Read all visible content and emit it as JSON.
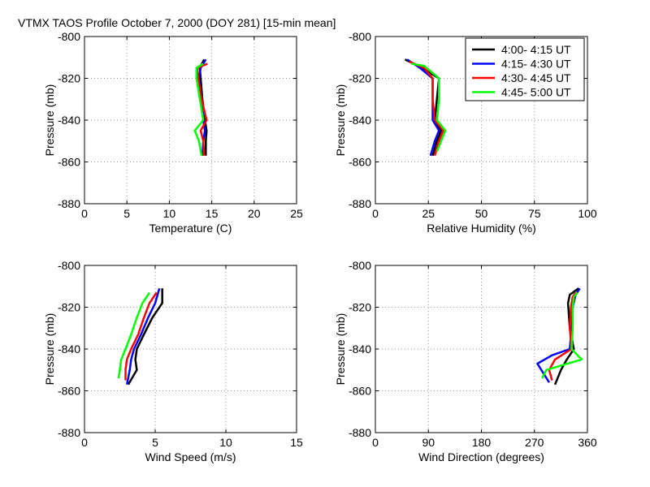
{
  "title": "VTMX TAOS Profile   October 7, 2000 (DOY 281) [15-min mean]",
  "legend": [
    {
      "name": "4:00- 4:15 UT",
      "color": "#000000"
    },
    {
      "name": "4:15- 4:30 UT",
      "color": "#0000ff"
    },
    {
      "name": "4:30- 4:45 UT",
      "color": "#ff0000"
    },
    {
      "name": "4:45- 5:00 UT",
      "color": "#00ff00"
    }
  ],
  "chart_data": [
    {
      "type": "line",
      "xlabel": "Temperature (C)",
      "ylabel": "Pressure (mb)",
      "xlim": [
        0,
        25
      ],
      "ylim": [
        -880,
        -800
      ],
      "xticks": [
        0,
        5,
        10,
        15,
        20,
        25
      ],
      "xtick_labels": [
        "0",
        "5",
        "10",
        "15",
        "20",
        "25"
      ],
      "yticks": [
        -800,
        -820,
        -840,
        -860,
        -880
      ],
      "ytick_labels": [
        "-800",
        "-820",
        "-840",
        "-860",
        "-880"
      ],
      "legend": false,
      "series": [
        {
          "name": "4:00- 4:15 UT",
          "x": [
            14.1,
            13.6,
            13.7,
            13.9,
            14.2,
            14.4,
            14.3,
            14.3
          ],
          "y": [
            -811,
            -815,
            -820,
            -830,
            -840,
            -845,
            -850,
            -857
          ]
        },
        {
          "name": "4:15- 4:30 UT",
          "x": [
            14.3,
            13.7,
            13.5,
            13.8,
            14.0,
            14.2,
            14.0,
            13.9
          ],
          "y": [
            -811,
            -815,
            -820,
            -830,
            -840,
            -845,
            -850,
            -857
          ]
        },
        {
          "name": "4:30- 4:45 UT",
          "x": [
            14.5,
            13.3,
            13.4,
            13.8,
            14.4,
            13.7,
            14.0,
            14.1
          ],
          "y": [
            -813,
            -815,
            -820,
            -830,
            -840,
            -845,
            -850,
            -857
          ]
        },
        {
          "name": "4:45- 5:00 UT",
          "x": [
            14.0,
            13.2,
            13.2,
            13.6,
            14.0,
            13.0,
            13.5,
            13.8
          ],
          "y": [
            -813,
            -815,
            -820,
            -830,
            -840,
            -845,
            -850,
            -857
          ]
        }
      ]
    },
    {
      "type": "line",
      "xlabel": "Relative Humidity (%)",
      "ylabel": "Pressure (mb)",
      "xlim": [
        0,
        100
      ],
      "ylim": [
        -880,
        -800
      ],
      "xticks": [
        0,
        25,
        50,
        75,
        100
      ],
      "xtick_labels": [
        "0",
        "25",
        "50",
        "75",
        "100"
      ],
      "yticks": [
        -800,
        -820,
        -840,
        -860,
        -880
      ],
      "ytick_labels": [
        "-800",
        "-820",
        "-840",
        "-860",
        "-880"
      ],
      "legend": true,
      "series": [
        {
          "name": "4:00- 4:15 UT",
          "x": [
            14,
            22,
            30,
            29,
            28,
            31,
            29,
            27
          ],
          "y": [
            -811,
            -815,
            -820,
            -830,
            -840,
            -845,
            -850,
            -857
          ]
        },
        {
          "name": "4:15- 4:30 UT",
          "x": [
            15,
            21,
            27,
            27,
            27,
            30,
            28,
            26
          ],
          "y": [
            -811,
            -815,
            -820,
            -830,
            -840,
            -845,
            -850,
            -857
          ]
        },
        {
          "name": "4:30- 4:45 UT",
          "x": [
            16,
            23,
            27,
            27,
            28,
            32,
            30,
            28
          ],
          "y": [
            -812,
            -815,
            -820,
            -830,
            -840,
            -845,
            -850,
            -857
          ]
        },
        {
          "name": "4:45- 5:00 UT",
          "x": [
            17,
            23,
            30,
            30,
            29,
            33,
            31,
            29
          ],
          "y": [
            -813,
            -814,
            -820,
            -830,
            -840,
            -845,
            -850,
            -855
          ]
        }
      ]
    },
    {
      "type": "line",
      "xlabel": "Wind Speed (m/s)",
      "ylabel": "Pressure (mb)",
      "xlim": [
        0,
        15
      ],
      "ylim": [
        -880,
        -800
      ],
      "xticks": [
        0,
        5,
        10,
        15
      ],
      "xtick_labels": [
        "0",
        "5",
        "10",
        "15"
      ],
      "yticks": [
        -800,
        -820,
        -840,
        -860,
        -880
      ],
      "ytick_labels": [
        "-800",
        "-820",
        "-840",
        "-860",
        "-880"
      ],
      "legend": false,
      "series": [
        {
          "name": "4:00- 4:15 UT",
          "x": [
            5.5,
            5.5,
            4.8,
            4.2,
            3.7,
            3.6,
            3.7,
            3.1
          ],
          "y": [
            -811,
            -818,
            -825,
            -833,
            -840,
            -845,
            -850,
            -857
          ]
        },
        {
          "name": "4:15- 4:30 UT",
          "x": [
            5.3,
            5.0,
            4.5,
            4.0,
            3.5,
            3.3,
            3.2,
            3.0
          ],
          "y": [
            -811,
            -818,
            -825,
            -833,
            -840,
            -845,
            -850,
            -857
          ]
        },
        {
          "name": "4:30- 4:45 UT",
          "x": [
            5.1,
            4.6,
            4.2,
            3.8,
            3.3,
            3.0,
            2.9,
            2.9
          ],
          "y": [
            -813,
            -818,
            -825,
            -833,
            -840,
            -845,
            -850,
            -855
          ]
        },
        {
          "name": "4:45- 5:00 UT",
          "x": [
            4.6,
            4.1,
            3.7,
            3.3,
            2.9,
            2.6,
            2.5,
            2.4
          ],
          "y": [
            -813,
            -818,
            -825,
            -833,
            -840,
            -845,
            -850,
            -854
          ]
        }
      ]
    },
    {
      "type": "line",
      "xlabel": "Wind Direction (degrees)",
      "ylabel": "Pressure (mb)",
      "xlim": [
        0,
        360
      ],
      "ylim": [
        -880,
        -800
      ],
      "xticks": [
        0,
        90,
        180,
        270,
        360
      ],
      "xtick_labels": [
        "0",
        "90",
        "180",
        "270",
        "360"
      ],
      "yticks": [
        -800,
        -820,
        -840,
        -860,
        -880
      ],
      "ytick_labels": [
        "-800",
        "-820",
        "-840",
        "-860",
        "-880"
      ],
      "legend": false,
      "series": [
        {
          "name": "4:00- 4:15 UT",
          "x": [
            345,
            330,
            327,
            330,
            337,
            325,
            315,
            305
          ],
          "y": [
            -811,
            -814,
            -818,
            -830,
            -840,
            -845,
            -850,
            -857
          ]
        },
        {
          "name": "4:15- 4:30 UT",
          "x": [
            347,
            340,
            335,
            333,
            330,
            300,
            275,
            295
          ],
          "y": [
            -811,
            -814,
            -820,
            -830,
            -840,
            -843,
            -847,
            -856
          ]
        },
        {
          "name": "4:30- 4:45 UT",
          "x": [
            340,
            335,
            332,
            330,
            333,
            305,
            295,
            300
          ],
          "y": [
            -813,
            -815,
            -820,
            -830,
            -840,
            -845,
            -850,
            -855
          ]
        },
        {
          "name": "4:45- 5:00 UT",
          "x": [
            343,
            337,
            335,
            335,
            333,
            350,
            290,
            283
          ],
          "y": [
            -813,
            -815,
            -820,
            -830,
            -840,
            -845,
            -850,
            -854
          ]
        }
      ]
    }
  ]
}
